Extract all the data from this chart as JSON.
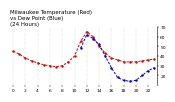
{
  "title": "Milwaukee Temperature (Red)",
  "title2": "vs Dew Point (Blue)",
  "title3": "(24 Hours)",
  "hours": [
    0,
    1,
    2,
    3,
    4,
    5,
    6,
    7,
    8,
    9,
    10,
    11,
    12,
    13,
    14,
    15,
    16,
    17,
    18,
    19,
    20,
    21,
    22,
    23
  ],
  "temp": [
    45,
    42,
    38,
    35,
    33,
    31,
    30,
    29,
    30,
    34,
    40,
    55,
    65,
    60,
    50,
    43,
    38,
    36,
    34,
    34,
    34,
    35,
    36,
    37
  ],
  "dew": [
    null,
    null,
    null,
    null,
    null,
    null,
    null,
    null,
    null,
    null,
    null,
    48,
    62,
    58,
    52,
    40,
    28,
    18,
    15,
    14,
    15,
    20,
    25,
    28
  ],
  "temp_color": "#dd0000",
  "dew_color": "#0000cc",
  "ylim": [
    10,
    70
  ],
  "ytick_vals": [
    20,
    30,
    40,
    50,
    60,
    70
  ],
  "ytick_labels": [
    "20",
    "30",
    "40",
    "50",
    "60",
    "70"
  ],
  "xtick_vals": [
    0,
    2,
    4,
    6,
    8,
    10,
    12,
    14,
    16,
    18,
    20,
    22
  ],
  "xtick_labels": [
    "0",
    "2",
    "4",
    "6",
    "8",
    "10",
    "12",
    "14",
    "16",
    "18",
    "20",
    "22"
  ],
  "bg_color": "#ffffff",
  "grid_color": "#bbbbbb",
  "title_fontsize": 4.0,
  "tick_fontsize": 3.2,
  "linewidth": 0.7,
  "markersize": 1.5
}
